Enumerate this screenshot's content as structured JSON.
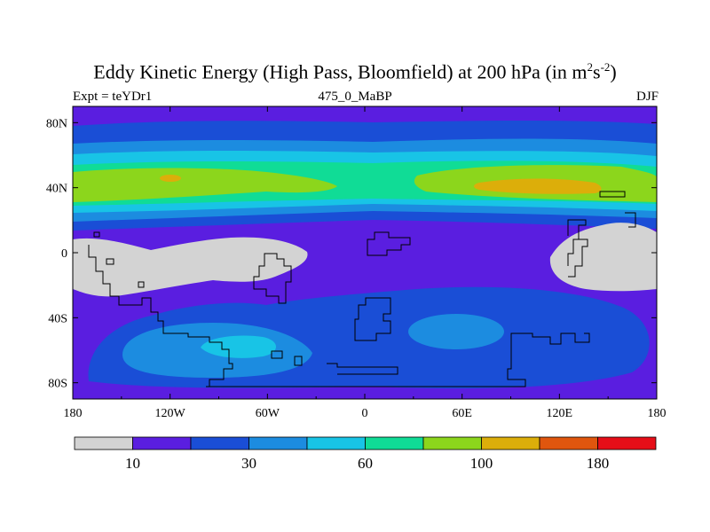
{
  "chart_data": {
    "type": "heatmap",
    "title_main": "Eddy Kinetic Energy (High Pass, Bloomfield) at 200 hPa (in m",
    "title_sup1": "2",
    "title_mid": "s",
    "title_sup2": "-2",
    "title_end": ")",
    "left_label": "Expt = teYDr1",
    "subtitle": "475_0_MaBP",
    "right_label": "DJF",
    "x_axis": {
      "range": [
        -180,
        180
      ],
      "ticks": [
        -180,
        -120,
        -60,
        0,
        60,
        120,
        180
      ],
      "tick_labels": [
        "180",
        "120W",
        "60W",
        "0",
        "60E",
        "120E",
        "180"
      ]
    },
    "y_axis": {
      "range": [
        -90,
        90
      ],
      "ticks": [
        80,
        40,
        0,
        -40,
        -80
      ],
      "tick_labels": [
        "80N",
        "40N",
        "0",
        "40S",
        "80S"
      ]
    },
    "colorbar": {
      "colors": [
        "#d3d3d3",
        "#5a1ee0",
        "#1a4ed6",
        "#1c8ce0",
        "#18c4e6",
        "#10dc96",
        "#8cd61c",
        "#dcae0a",
        "#e0560e",
        "#e60e18"
      ],
      "labels": [
        {
          "text": "10",
          "boundary": 1
        },
        {
          "text": "30",
          "boundary": 3
        },
        {
          "text": "60",
          "boundary": 5
        },
        {
          "text": "100",
          "boundary": 7
        },
        {
          "text": "180",
          "boundary": 9
        }
      ]
    }
  }
}
